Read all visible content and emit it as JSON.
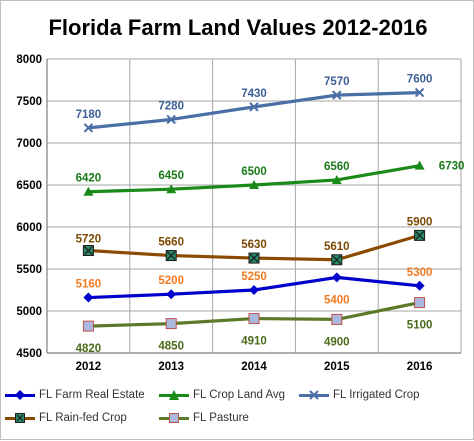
{
  "chart_data": {
    "type": "line",
    "title": "Florida Farm Land Values 2012-2016",
    "categories": [
      "2012",
      "2013",
      "2014",
      "2015",
      "2016"
    ],
    "ylim": [
      4500,
      8000
    ],
    "yticks": [
      "4500",
      "5000",
      "5500",
      "6000",
      "6500",
      "7000",
      "7500",
      "8000"
    ],
    "grid": true,
    "legend_position": "bottom",
    "series": [
      {
        "name": "FL Farm Real Estate",
        "values": [
          5160,
          5200,
          5250,
          5400,
          5300
        ],
        "labels": [
          "5160",
          "5200",
          "5250",
          "5400",
          "5300"
        ],
        "color": "#0000cc",
        "label_color": "#f47a20",
        "marker": "diamond"
      },
      {
        "name": "FL Crop Land Avg",
        "values": [
          6420,
          6450,
          6500,
          6560,
          6730
        ],
        "labels": [
          "6420",
          "6450",
          "6500",
          "6560",
          "6730"
        ],
        "color": "#1a8a1a",
        "label_color": "#1a7a1a",
        "marker": "triangle"
      },
      {
        "name": "FL Irrigated Crop",
        "values": [
          7180,
          7280,
          7430,
          7570,
          7600
        ],
        "labels": [
          "7180",
          "7280",
          "7430",
          "7570",
          "7600"
        ],
        "color": "#4a6fa5",
        "label_color": "#3c5f95",
        "marker": "x"
      },
      {
        "name": "FL Rain-fed Crop",
        "values": [
          5720,
          5660,
          5630,
          5610,
          5900
        ],
        "labels": [
          "5720",
          "5660",
          "5630",
          "5610",
          "5900"
        ],
        "color": "#8a4a00",
        "label_color": "#7a4800",
        "marker": "square-x"
      },
      {
        "name": "FL Pasture",
        "values": [
          4820,
          4850,
          4910,
          4900,
          5100
        ],
        "labels": [
          "4820",
          "4850",
          "4910",
          "4900",
          "5100"
        ],
        "color": "#5a7a2a",
        "label_color": "#4a6a1a",
        "marker": "square"
      }
    ]
  }
}
